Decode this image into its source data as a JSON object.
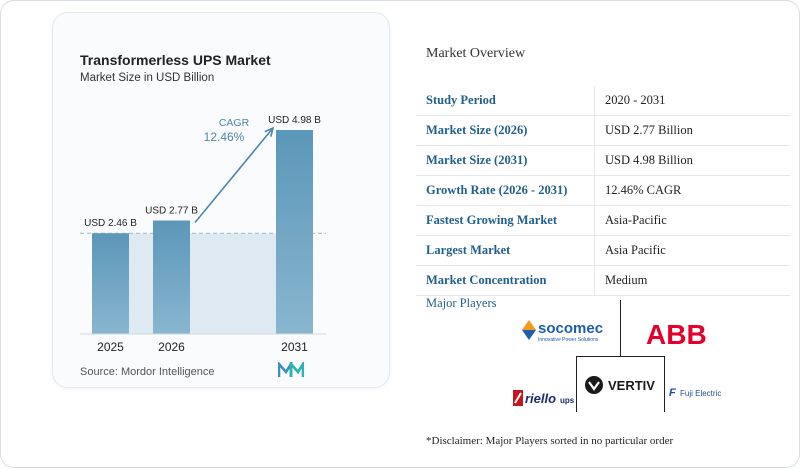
{
  "chart_data": {
    "type": "bar",
    "title": "Transformerless UPS Market",
    "subtitle": "Market Size in USD Billion",
    "categories": [
      "2025",
      "2026",
      "2031"
    ],
    "values": [
      2.46,
      2.77,
      4.98
    ],
    "data_labels": [
      "USD 2.46 B",
      "USD 2.77 B",
      "USD 4.98 B"
    ],
    "ylim": [
      0,
      5.2
    ],
    "grid": false,
    "annotation": {
      "label": "CAGR",
      "value": "12.46%"
    },
    "colors": {
      "bar": "#5b97b9",
      "bar_light": "#89b6cf",
      "band": "#dfe9f1",
      "arrow": "#4f86a8",
      "cagr_text": "#4f86a8"
    }
  },
  "source": "Source: Mordor Intelligence",
  "overview": {
    "title": "Market Overview",
    "rows": [
      {
        "label": "Study Period",
        "value": "2020 - 2031"
      },
      {
        "label": "Market Size (2026)",
        "value": "USD 2.77 Billion"
      },
      {
        "label": "Market Size (2031)",
        "value": "USD 4.98 Billion"
      },
      {
        "label": "Growth Rate (2026 - 2031)",
        "value": "12.46% CAGR"
      },
      {
        "label": "Fastest Growing Market",
        "value": "Asia-Pacific"
      },
      {
        "label": "Largest Market",
        "value": "Asia Pacific"
      },
      {
        "label": "Market Concentration",
        "value": "Medium"
      }
    ]
  },
  "players": {
    "title": "Major Players",
    "logos": {
      "socomec": "socomec",
      "socomec_tag": "Innovative Power Solutions",
      "abb": "ABB",
      "riello": "riello",
      "riello_suffix": "ups",
      "vertiv": "VERTIV",
      "fuji": "Fuji Electric"
    }
  },
  "disclaimer": "*Disclaimer: Major Players sorted in no particular order",
  "colors": {
    "label_blue": "#1f5f8b"
  }
}
